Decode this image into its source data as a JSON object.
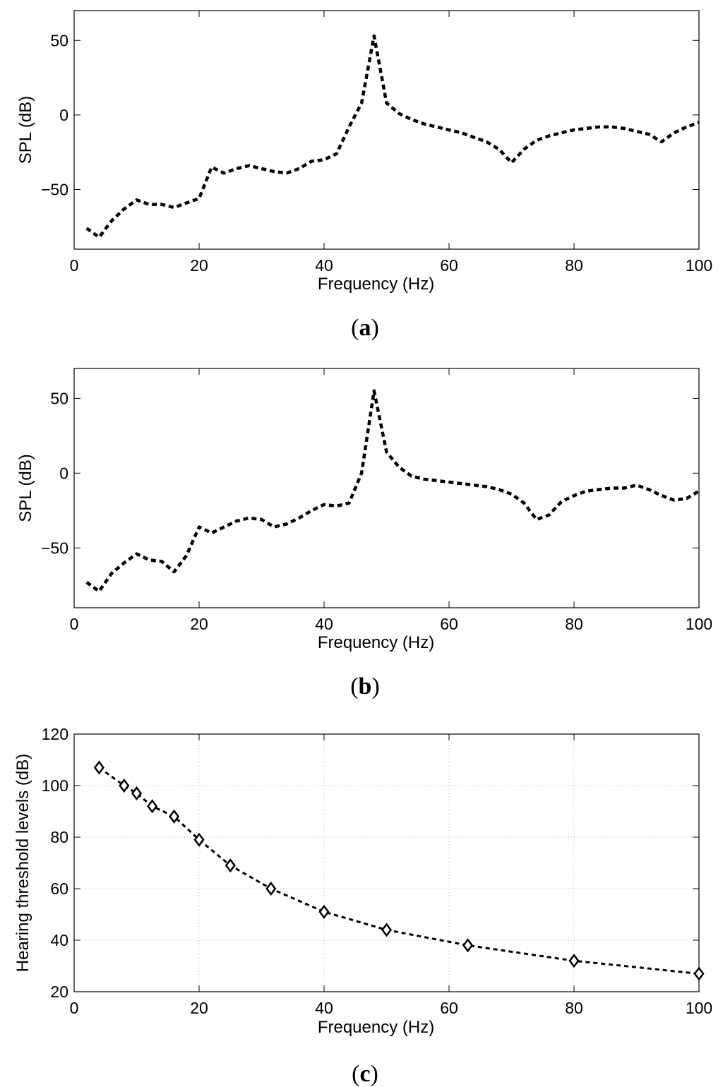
{
  "chart_data": [
    {
      "type": "line",
      "panel_label": "(a)",
      "panel_letter": "a",
      "title": "",
      "xlabel": "Frequency (Hz)",
      "ylabel": "SPL (dB)",
      "xlim": [
        0,
        100
      ],
      "ylim": [
        -90,
        70
      ],
      "xticks": [
        0,
        20,
        40,
        60,
        80,
        100
      ],
      "yticks": [
        -50,
        0,
        50
      ],
      "grid": false,
      "series": [
        {
          "name": "SPL",
          "style": "dotted",
          "x": [
            2,
            4,
            6,
            8,
            10,
            12,
            14,
            16,
            18,
            20,
            22,
            24,
            26,
            28,
            30,
            32,
            34,
            36,
            38,
            40,
            42,
            44,
            46,
            48,
            50,
            52,
            54,
            56,
            58,
            60,
            62,
            64,
            66,
            68,
            70,
            72,
            74,
            76,
            78,
            80,
            82,
            84,
            86,
            88,
            90,
            92,
            94,
            96,
            98,
            100
          ],
          "values": [
            -76,
            -82,
            -71,
            -63,
            -57,
            -60,
            -60,
            -62,
            -59,
            -56,
            -35,
            -39,
            -36,
            -34,
            -36,
            -38,
            -39,
            -36,
            -31,
            -30,
            -26,
            -8,
            8,
            53,
            8,
            1,
            -3,
            -6,
            -8,
            -10,
            -12,
            -15,
            -18,
            -23,
            -32,
            -23,
            -17,
            -14,
            -12,
            -10,
            -9,
            -8,
            -8,
            -9,
            -11,
            -13,
            -18,
            -12,
            -8,
            -5
          ]
        }
      ]
    },
    {
      "type": "line",
      "panel_label": "(b)",
      "panel_letter": "b",
      "title": "",
      "xlabel": "Frequency (Hz)",
      "ylabel": "SPL (dB)",
      "xlim": [
        0,
        100
      ],
      "ylim": [
        -90,
        70
      ],
      "xticks": [
        0,
        20,
        40,
        60,
        80,
        100
      ],
      "yticks": [
        -50,
        0,
        50
      ],
      "grid": false,
      "series": [
        {
          "name": "SPL",
          "style": "dotted",
          "x": [
            2,
            4,
            6,
            8,
            10,
            12,
            14,
            16,
            18,
            20,
            22,
            24,
            26,
            28,
            30,
            32,
            34,
            36,
            38,
            40,
            42,
            44,
            46,
            48,
            50,
            52,
            54,
            56,
            58,
            60,
            62,
            64,
            66,
            68,
            70,
            72,
            74,
            76,
            78,
            80,
            82,
            84,
            86,
            88,
            90,
            92,
            94,
            96,
            98,
            100
          ],
          "values": [
            -73,
            -79,
            -67,
            -60,
            -54,
            -58,
            -59,
            -66,
            -55,
            -36,
            -40,
            -36,
            -32,
            -30,
            -31,
            -36,
            -34,
            -30,
            -25,
            -21,
            -22,
            -20,
            0,
            55,
            14,
            4,
            -2,
            -4,
            -5,
            -6,
            -7,
            -8,
            -9,
            -11,
            -14,
            -20,
            -31,
            -28,
            -19,
            -15,
            -12,
            -11,
            -10,
            -10,
            -8,
            -11,
            -15,
            -18,
            -17,
            -12
          ]
        }
      ]
    },
    {
      "type": "line",
      "panel_label": "(c)",
      "panel_letter": "c",
      "title": "",
      "xlabel": "Frequency (Hz)",
      "ylabel": "Hearing threshold levels (dB)",
      "xlim": [
        0,
        100
      ],
      "ylim": [
        20,
        120
      ],
      "xticks": [
        0,
        20,
        40,
        60,
        80,
        100
      ],
      "yticks": [
        20,
        40,
        60,
        80,
        100,
        120
      ],
      "grid": true,
      "series": [
        {
          "name": "Hearing threshold",
          "style": "dashed-diamond",
          "x": [
            4,
            8,
            10,
            12.5,
            16,
            20,
            25,
            31.5,
            40,
            50,
            63,
            80,
            100
          ],
          "values": [
            107,
            100,
            97,
            92,
            88,
            79,
            69,
            60,
            51,
            44,
            38,
            32,
            27
          ]
        }
      ]
    }
  ]
}
